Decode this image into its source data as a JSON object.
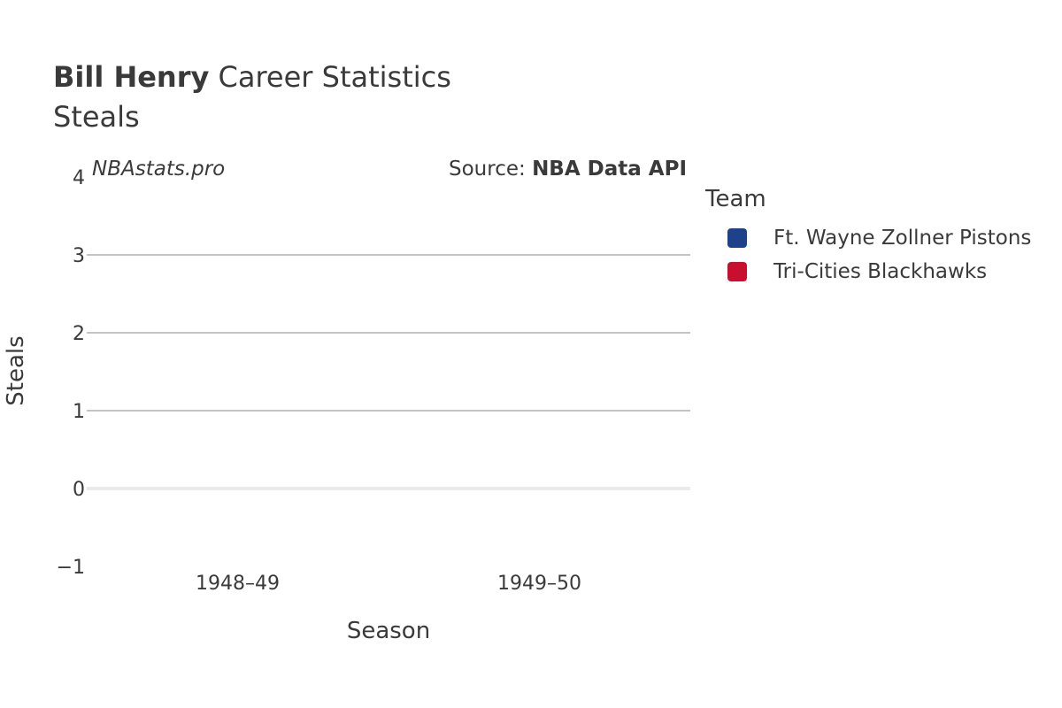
{
  "header": {
    "title_bold": "Bill Henry",
    "title_rest": " Career Statistics",
    "subtitle": "Steals",
    "watermark": "NBAstats.pro",
    "source_prefix": "Source: ",
    "source_name": "NBA Data API"
  },
  "legend": {
    "title": "Team",
    "items": [
      {
        "label": "Ft. Wayne Zollner Pistons",
        "color": "#1d428a"
      },
      {
        "label": "Tri-Cities Blackhawks",
        "color": "#c8102e"
      }
    ]
  },
  "chart_data": {
    "type": "bar",
    "title": "Bill Henry Career Statistics",
    "subtitle": "Steals",
    "xlabel": "Season",
    "ylabel": "Steals",
    "categories": [
      "1948–49",
      "1949–50"
    ],
    "series": [
      {
        "name": "Ft. Wayne Zollner Pistons",
        "values": [
          null,
          null
        ]
      },
      {
        "name": "Tri-Cities Blackhawks",
        "values": [
          null,
          null
        ]
      }
    ],
    "ylim": [
      -1,
      4
    ],
    "yticks": [
      "−1",
      "0",
      "1",
      "2",
      "3",
      "4"
    ],
    "grid": true,
    "legend_position": "right"
  }
}
